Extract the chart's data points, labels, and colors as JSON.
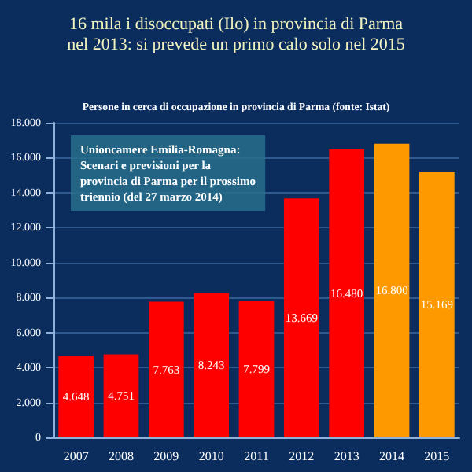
{
  "chart_data": {
    "type": "bar",
    "title": "16 mila i disoccupati (Ilo) in provincia di Parma nel 2013: si prevede un primo calo solo nel 2015",
    "subtitle": "Persone in cerca di occupazione in provincia di Parma (fonte: Istat)",
    "annotations": [
      "Unioncamere Emilia-Romagna: Scenari e previsioni per la provincia di Parma per il prossimo triennio (del 27 marzo 2014)"
    ],
    "categories": [
      "2007",
      "2008",
      "2009",
      "2010",
      "2011",
      "2012",
      "2013",
      "2014",
      "2015"
    ],
    "values": [
      4648,
      4751,
      7763,
      8243,
      7799,
      13669,
      16480,
      16800,
      15169
    ],
    "colors": [
      "#ff0000",
      "#ff0000",
      "#ff0000",
      "#ff0000",
      "#ff0000",
      "#ff0000",
      "#ff0000",
      "#ff9900",
      "#ff9900"
    ],
    "value_labels": [
      "4.648",
      "4.751",
      "7.763",
      "8.243",
      "7.799",
      "13.669",
      "16.480",
      "16.800",
      "15.169"
    ],
    "ylim": [
      0,
      18000
    ],
    "yticks": [
      0,
      {
        "value": 2000,
        "label": "2.000"
      },
      {
        "value": 4000,
        "label": "4.000"
      },
      {
        "value": 6000,
        "label": "6.000"
      },
      {
        "value": 8000,
        "label": "8.000"
      },
      {
        "value": 10000,
        "label": "10.000"
      },
      {
        "value": 12000,
        "label": "12.000"
      },
      {
        "value": 14000,
        "label": "14.000"
      },
      {
        "value": 16000,
        "label": "16.000"
      },
      {
        "value": 18000,
        "label": "18.000"
      }
    ],
    "grid": "y"
  }
}
